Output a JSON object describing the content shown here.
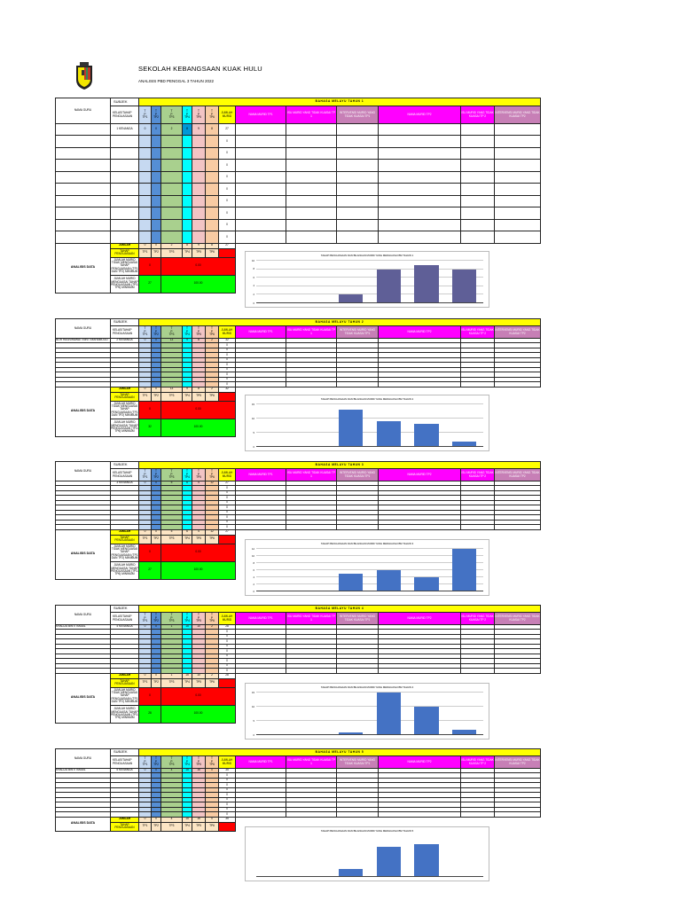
{
  "header": {
    "school_name": "SEKOLAH KEBANGSAAN KUAK HULU",
    "subtitle": "ANALISIS PBD PENGGAL 3 TAHUN 2022",
    "logo": "school-crest-icon"
  },
  "labels": {
    "nama_guru": "NAMA GURU",
    "subjek": "SUBJEK",
    "kelas_tahap": "KELAS/TAHAP PENGUASAAN",
    "tp_letters": [
      "T",
      "P",
      "1"
    ],
    "jumlah_murid": "JUMLAH MURID",
    "nama_murid_tp1": "NAMA MURID TP1",
    "isu_tp1": "ISU MURID YANG TIDAK KUASAI TP 1",
    "intervensi_tp1": "INTERVENSI MURID YANG TIDAK KUASAI TP1",
    "nama_murid_tp2": "NAMA MURID TP2",
    "isu_tp2": "ISU MURID YANG TIDAK KUASAI TP 2",
    "intervensi_tp2": "INTERVENSI MURID YANG TIDAK KUASAI TP2",
    "jumlah": "JUMLAH",
    "tahap_penguasaan": "TAHAP PENGUASAAN",
    "analisis_data": "ANALISIS DATA",
    "tidak_menguasai": "JUMLAH MURID TIDAK MENGUASAI TAHAP PENGUASAAN (TP1 DAN TP2) MINIMUM",
    "menguasai": "JUMLAH MURID MENGUASAI TAHAP PENGUASAAN (TP3-TP6) MINIMUM",
    "tp_headers": [
      "TP1",
      "TP2",
      "TP3",
      "TP4",
      "TP5",
      "TP6"
    ]
  },
  "sections": [
    {
      "title": "BAHASA MELAYU TAHUN 1",
      "guru": "",
      "kelas": "1 KENANGA",
      "counts": [
        0,
        0,
        2,
        8,
        9,
        8
      ],
      "total": 27,
      "empty_rows": 9,
      "tidak_menguasai": "0",
      "tidak_menguasai_pct": "0.00",
      "menguasai": "27",
      "menguasai_pct": "100.00",
      "chart_title": "TAHAP PENGUASAAN DAN BILANGAN MURID YANG MENGUASAI BM TAHUN 1"
    },
    {
      "title": "BAHASA MELAYU TAHUN 2",
      "guru": "NOR HASNIRAWATI BINTI MAHAMOOD",
      "kelas": "2 KENANGA",
      "counts": [
        0,
        0,
        13,
        9,
        8,
        2
      ],
      "total": 32,
      "empty_rows": 9,
      "tidak_menguasai": "0",
      "tidak_menguasai_pct": "0.00",
      "menguasai": "32",
      "menguasai_pct": "100.00",
      "chart_title": "TAHAP PENGUASAAN DAN BILANGAN MURID YANG MENGUASAI BM TAHUN 2"
    },
    {
      "title": "BAHASA MELAYU TAHUN 3",
      "guru": "",
      "kelas": "3 KENANGA",
      "counts": [
        0,
        0,
        5,
        6,
        4,
        12
      ],
      "total": 27,
      "empty_rows": 9,
      "tidak_menguasai": "0",
      "tidak_menguasai_pct": "0.00",
      "menguasai": "27",
      "menguasai_pct": "100.00",
      "chart_title": "TAHAP PENGUASAAN DAN BILANGAN MURID YANG MENGUASAI BM TAHUN 3"
    },
    {
      "title": "BAHASA MELAYU TAHUN 4",
      "guru": "KHALIZA BINTI ISMAIL",
      "kelas": "4 KENANGA",
      "counts": [
        0,
        0,
        1,
        15,
        10,
        2
      ],
      "total": 28,
      "empty_rows": 9,
      "tidak_menguasai": "0",
      "tidak_menguasai_pct": "0.00",
      "menguasai": "28",
      "menguasai_pct": "100.00",
      "chart_title": "TAHAP PENGUASAAN DAN BILANGAN MURID YANG MENGUASAI BM TAHUN 4"
    },
    {
      "title": "BAHASA MELAYU TAHUN 5",
      "guru": "KHALIZA BINTI ISMAIL",
      "kelas": "5 KENANGA",
      "counts": [
        0,
        0,
        4,
        15,
        16,
        0
      ],
      "total": 35,
      "empty_rows": 9,
      "chart_title": "TAHAP PENGUASAAN DAN BILANGAN MURID YANG MENGUASAI BM TAHUN 5"
    }
  ],
  "chart_data": [
    {
      "type": "bar",
      "title": "TAHAP PENGUASAAN DAN BILANGAN MURID YANG MENGUASAI BM TAHUN 1",
      "categories": [
        "TP1",
        "TP2",
        "TP3",
        "TP4",
        "TP5",
        "TP6"
      ],
      "values": [
        0,
        0,
        2,
        8,
        9,
        8
      ],
      "ylim": [
        0,
        10
      ],
      "yticks": [
        0,
        2,
        4,
        6,
        8,
        10
      ],
      "color": "#5f5f97",
      "grid": true
    },
    {
      "type": "bar",
      "title": "TAHAP PENGUASAAN DAN BILANGAN MURID YANG MENGUASAI BM TAHUN 2",
      "categories": [
        "TP1",
        "TP2",
        "TP3",
        "TP4",
        "TP5",
        "TP6"
      ],
      "values": [
        0,
        0,
        13,
        9,
        8,
        2
      ],
      "ylim": [
        0,
        15
      ],
      "yticks": [
        0,
        5,
        10,
        15
      ],
      "color": "#4472c4",
      "grid": true
    },
    {
      "type": "bar",
      "title": "TAHAP PENGUASAAN DAN BILANGAN MURID YANG MENGUASAI BM TAHUN 3",
      "categories": [
        "TP1",
        "TP2",
        "TP3",
        "TP4",
        "TP5",
        "TP6"
      ],
      "values": [
        0,
        0,
        5,
        6,
        4,
        12
      ],
      "ylim": [
        0,
        12
      ],
      "yticks": [
        0,
        2,
        4,
        6,
        8,
        10,
        12
      ],
      "color": "#4472c4",
      "grid": true
    },
    {
      "type": "bar",
      "title": "TAHAP PENGUASAAN DAN BILANGAN MURID YANG MENGUASAI BM TAHUN 4",
      "categories": [
        "TP1",
        "TP2",
        "TP3",
        "TP4",
        "TP5",
        "TP6"
      ],
      "values": [
        0,
        0,
        1,
        15,
        10,
        2
      ],
      "ylim": [
        0,
        15
      ],
      "yticks": [
        0,
        5,
        10,
        15
      ],
      "color": "#4472c4",
      "grid": true
    },
    {
      "type": "bar",
      "title": "TAHAP PENGUASAAN DAN BILANGAN MURID YANG MENGUASAI BM TAHUN 5",
      "categories": [
        "TP1",
        "TP2",
        "TP3",
        "TP4",
        "TP5",
        "TP6"
      ],
      "values": [
        0,
        0,
        4,
        15,
        16,
        0
      ],
      "ylim": [
        0,
        20
      ],
      "yticks": [],
      "color": "#4472c4",
      "grid": true
    }
  ]
}
